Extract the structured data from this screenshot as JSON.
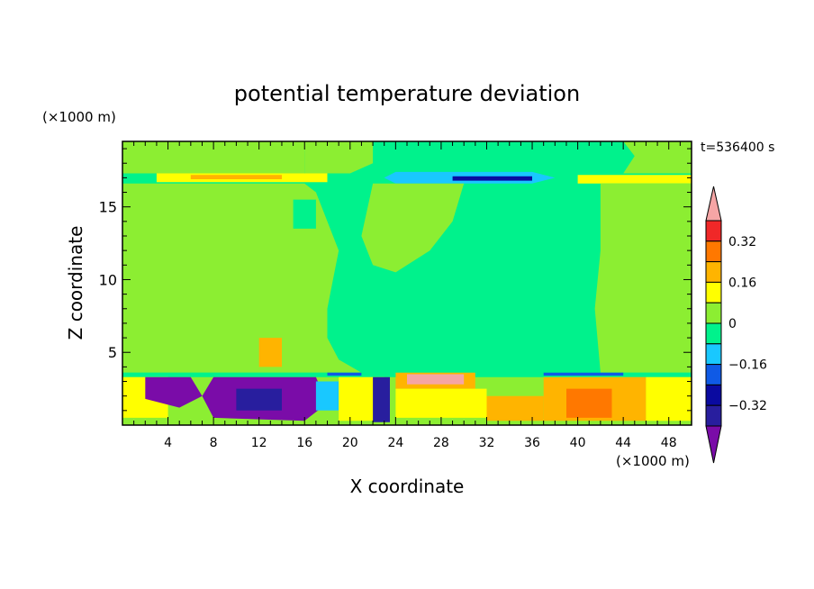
{
  "chart_data": {
    "type": "heatmap",
    "title": "potential temperature deviation",
    "xlabel": "X coordinate",
    "ylabel": "Z coordinate",
    "x_unit": "(×1000 m)",
    "y_unit": "(×1000 m)",
    "time_label": "t=536400 s",
    "xlim": [
      0,
      50
    ],
    "ylim": [
      0,
      19.5
    ],
    "x_ticks": [
      4,
      8,
      12,
      16,
      20,
      24,
      28,
      32,
      36,
      40,
      44,
      48
    ],
    "y_ticks": [
      5,
      10,
      15
    ],
    "colorbar": {
      "ticks": [
        "0.32",
        "0.16",
        "0",
        "−0.16",
        "−0.32"
      ],
      "tick_values": [
        0.32,
        0.16,
        0,
        -0.16,
        -0.32
      ],
      "levels": [
        -0.48,
        -0.4,
        -0.32,
        -0.24,
        -0.16,
        -0.08,
        0,
        0.08,
        0.16,
        0.24,
        0.32,
        0.4,
        0.48
      ],
      "colors": [
        "#7a0ca8",
        "#281e9e",
        "#0a0aa0",
        "#0f5ae6",
        "#19c8ff",
        "#00f28c",
        "#8cee32",
        "#ffff00",
        "#ffb400",
        "#ff7800",
        "#f02828",
        "#f5a5a5"
      ]
    },
    "regions": [
      {
        "level": 0.04,
        "points": [
          [
            0,
            19.5
          ],
          [
            16,
            19.5
          ],
          [
            16,
            17.3
          ],
          [
            0,
            17.3
          ]
        ]
      },
      {
        "level": 0.04,
        "points": [
          [
            16,
            19.5
          ],
          [
            22,
            19.5
          ],
          [
            22,
            18
          ],
          [
            20,
            17.3
          ],
          [
            16,
            17.3
          ]
        ]
      },
      {
        "level": 0.04,
        "points": [
          [
            44,
            19.5
          ],
          [
            50,
            19.5
          ],
          [
            50,
            17.3
          ],
          [
            44,
            17.3
          ],
          [
            45,
            18.5
          ]
        ]
      },
      {
        "level": -0.04,
        "points": [
          [
            16,
            17.3
          ],
          [
            16,
            16.7
          ],
          [
            22,
            16.7
          ],
          [
            22,
            17.3
          ]
        ]
      },
      {
        "level": 0.12,
        "points": [
          [
            3,
            17.3
          ],
          [
            18,
            17.3
          ],
          [
            18,
            16.7
          ],
          [
            3,
            16.7
          ]
        ]
      },
      {
        "level": 0.2,
        "points": [
          [
            6,
            17.2
          ],
          [
            14,
            17.2
          ],
          [
            14,
            16.9
          ],
          [
            6,
            16.9
          ]
        ]
      },
      {
        "level": -0.12,
        "points": [
          [
            24,
            17.4
          ],
          [
            36,
            17.4
          ],
          [
            38,
            17
          ],
          [
            36,
            16.6
          ],
          [
            24,
            16.6
          ],
          [
            23,
            17
          ]
        ]
      },
      {
        "level": -0.28,
        "points": [
          [
            29,
            17.1
          ],
          [
            36,
            17.1
          ],
          [
            36,
            16.8
          ],
          [
            29,
            16.8
          ]
        ]
      },
      {
        "level": 0.12,
        "points": [
          [
            40,
            17.2
          ],
          [
            50,
            17.2
          ],
          [
            50,
            16.6
          ],
          [
            40,
            16.6
          ]
        ]
      },
      {
        "level": 0.04,
        "points": [
          [
            0,
            16.6
          ],
          [
            16,
            16.6
          ],
          [
            17,
            16
          ],
          [
            18,
            14
          ],
          [
            19,
            12
          ],
          [
            18.5,
            10
          ],
          [
            18,
            8
          ],
          [
            18,
            6
          ],
          [
            19,
            4.5
          ],
          [
            21,
            3.6
          ],
          [
            0,
            3.6
          ],
          [
            0,
            9
          ],
          [
            3,
            11.5
          ],
          [
            6,
            10
          ],
          [
            5,
            6
          ],
          [
            0,
            4.5
          ]
        ]
      },
      {
        "level": 0.04,
        "points": [
          [
            22,
            16.6
          ],
          [
            30,
            16.6
          ],
          [
            29,
            14
          ],
          [
            27,
            12
          ],
          [
            24,
            10.5
          ],
          [
            22,
            11
          ],
          [
            21,
            13
          ]
        ]
      },
      {
        "level": 0.04,
        "points": [
          [
            42,
            16.6
          ],
          [
            50,
            16.6
          ],
          [
            50,
            3.6
          ],
          [
            42,
            3.6
          ],
          [
            41.5,
            8
          ],
          [
            42,
            12
          ]
        ]
      },
      {
        "level": -0.04,
        "points": [
          [
            15,
            15.5
          ],
          [
            17,
            15.5
          ],
          [
            17,
            13.5
          ],
          [
            15,
            13.5
          ]
        ]
      },
      {
        "level": 0.2,
        "points": [
          [
            12,
            6
          ],
          [
            14,
            6
          ],
          [
            14,
            4
          ],
          [
            12,
            4
          ]
        ]
      },
      {
        "level": -0.04,
        "points": [
          [
            0,
            3.6
          ],
          [
            50,
            3.6
          ],
          [
            50,
            3.3
          ],
          [
            0,
            3.3
          ]
        ]
      },
      {
        "level": 0.04,
        "points": [
          [
            0,
            3.3
          ],
          [
            50,
            3.3
          ],
          [
            50,
            0
          ],
          [
            0,
            0
          ]
        ]
      },
      {
        "level": 0.12,
        "points": [
          [
            0,
            3.3
          ],
          [
            4,
            3.3
          ],
          [
            4,
            0.5
          ],
          [
            0,
            0.5
          ]
        ]
      },
      {
        "level": -0.44,
        "points": [
          [
            2,
            3.3
          ],
          [
            6,
            3.3
          ],
          [
            7,
            2
          ],
          [
            5,
            1.2
          ],
          [
            2,
            1.8
          ]
        ]
      },
      {
        "level": -0.44,
        "points": [
          [
            8,
            3.3
          ],
          [
            17,
            3.3
          ],
          [
            18,
            1.5
          ],
          [
            16,
            0.3
          ],
          [
            8,
            0.5
          ],
          [
            7,
            2
          ]
        ]
      },
      {
        "level": -0.36,
        "points": [
          [
            10,
            2.5
          ],
          [
            14,
            2.5
          ],
          [
            14,
            1
          ],
          [
            10,
            1
          ]
        ]
      },
      {
        "level": -0.12,
        "points": [
          [
            17,
            3
          ],
          [
            19,
            3
          ],
          [
            19,
            1
          ],
          [
            17,
            1
          ]
        ]
      },
      {
        "level": 0.12,
        "points": [
          [
            19,
            3.3
          ],
          [
            23,
            3.3
          ],
          [
            23,
            0.3
          ],
          [
            19,
            0.3
          ]
        ]
      },
      {
        "level": -0.36,
        "points": [
          [
            22,
            3.3
          ],
          [
            23.5,
            3.3
          ],
          [
            23.5,
            0.2
          ],
          [
            22,
            0.2
          ]
        ]
      },
      {
        "level": 0.2,
        "points": [
          [
            24,
            3.6
          ],
          [
            31,
            3.6
          ],
          [
            31,
            2.5
          ],
          [
            24,
            2.5
          ]
        ]
      },
      {
        "level": 0.44,
        "points": [
          [
            25,
            3.5
          ],
          [
            30,
            3.5
          ],
          [
            30,
            2.8
          ],
          [
            25,
            2.8
          ]
        ]
      },
      {
        "level": 0.12,
        "points": [
          [
            24,
            2.5
          ],
          [
            32,
            2.5
          ],
          [
            32,
            0.5
          ],
          [
            24,
            0.5
          ]
        ]
      },
      {
        "level": 0.2,
        "points": [
          [
            32,
            2
          ],
          [
            37,
            2
          ],
          [
            37,
            0.3
          ],
          [
            32,
            0.3
          ]
        ]
      },
      {
        "level": 0.2,
        "points": [
          [
            37,
            3.3
          ],
          [
            46,
            3.3
          ],
          [
            46,
            0.3
          ],
          [
            37,
            0.3
          ]
        ]
      },
      {
        "level": 0.28,
        "points": [
          [
            39,
            2.5
          ],
          [
            43,
            2.5
          ],
          [
            43,
            0.5
          ],
          [
            39,
            0.5
          ]
        ]
      },
      {
        "level": 0.12,
        "points": [
          [
            46,
            3.3
          ],
          [
            50,
            3.3
          ],
          [
            50,
            0.3
          ],
          [
            46,
            0.3
          ]
        ]
      },
      {
        "level": -0.2,
        "points": [
          [
            37,
            3.6
          ],
          [
            44,
            3.6
          ],
          [
            44,
            3.4
          ],
          [
            37,
            3.4
          ]
        ]
      },
      {
        "level": -0.2,
        "points": [
          [
            18,
            3.6
          ],
          [
            21,
            3.6
          ],
          [
            21,
            3.4
          ],
          [
            18,
            3.4
          ]
        ]
      }
    ]
  }
}
